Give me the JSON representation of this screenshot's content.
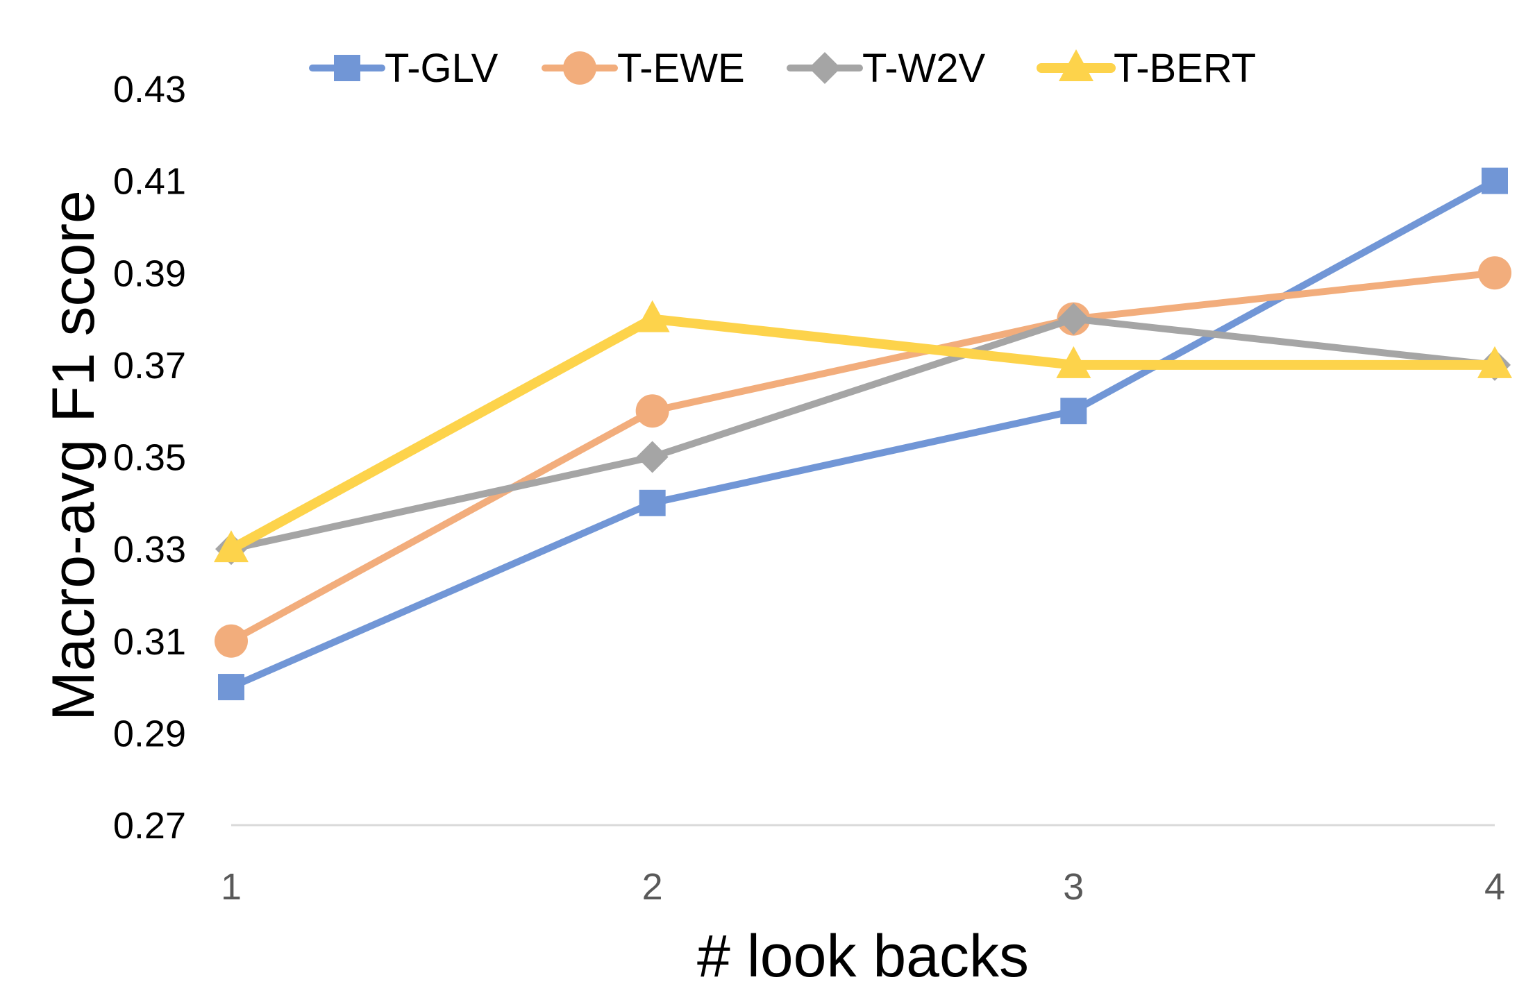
{
  "chart_data": {
    "type": "line",
    "title": "",
    "xlabel": "# look backs",
    "ylabel": "Macro-avg F1 score",
    "categories": [
      "1",
      "2",
      "3",
      "4"
    ],
    "x": [
      1,
      2,
      3,
      4
    ],
    "ylim": [
      0.27,
      0.43
    ],
    "yticks": [
      "0.27",
      "0.29",
      "0.31",
      "0.33",
      "0.35",
      "0.37",
      "0.39",
      "0.41",
      "0.43"
    ],
    "grid": false,
    "legend_position": "top",
    "series": [
      {
        "name": "T-GLV",
        "values": [
          0.3,
          0.34,
          0.36,
          0.41
        ],
        "color": "#7196D6",
        "marker": "square"
      },
      {
        "name": "T-EWE",
        "values": [
          0.31,
          0.36,
          0.38,
          0.39
        ],
        "color": "#F2AD7C",
        "marker": "circle"
      },
      {
        "name": "T-W2V",
        "values": [
          0.33,
          0.35,
          0.38,
          0.37
        ],
        "color": "#A5A5A5",
        "marker": "diamond"
      },
      {
        "name": "T-BERT",
        "values": [
          0.33,
          0.38,
          0.37,
          0.37
        ],
        "color": "#FDD34B",
        "marker": "triangle"
      }
    ]
  }
}
